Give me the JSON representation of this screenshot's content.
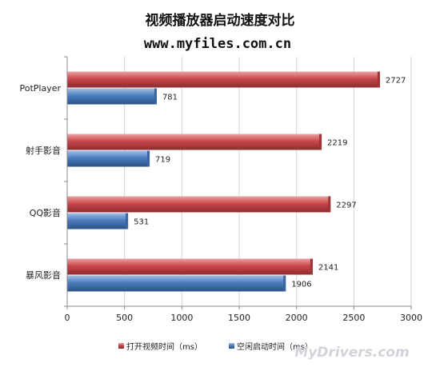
{
  "title": "视频播放器启动速度对比",
  "subtitle": "www.myfiles.com.cn",
  "watermark": "MyDrivers.com",
  "colors": {
    "series1": "#c8474a",
    "series2": "#4a7ebf",
    "axis": "#888888",
    "grid": "#d4d4d4"
  },
  "chart_data": {
    "type": "bar",
    "orientation": "horizontal",
    "categories": [
      "PotPlayer",
      "射手影音",
      "QQ影音",
      "暴风影音"
    ],
    "series": [
      {
        "name": "打开视频时间（ms）",
        "values": [
          2727,
          2219,
          2297,
          2141
        ]
      },
      {
        "name": "空闲启动时间（ms）",
        "values": [
          781,
          719,
          531,
          1906
        ]
      }
    ],
    "xlim": [
      0,
      3000
    ],
    "xticks": [
      0,
      500,
      1000,
      1500,
      2000,
      2500,
      3000
    ],
    "grid": true,
    "legend_position": "bottom"
  }
}
